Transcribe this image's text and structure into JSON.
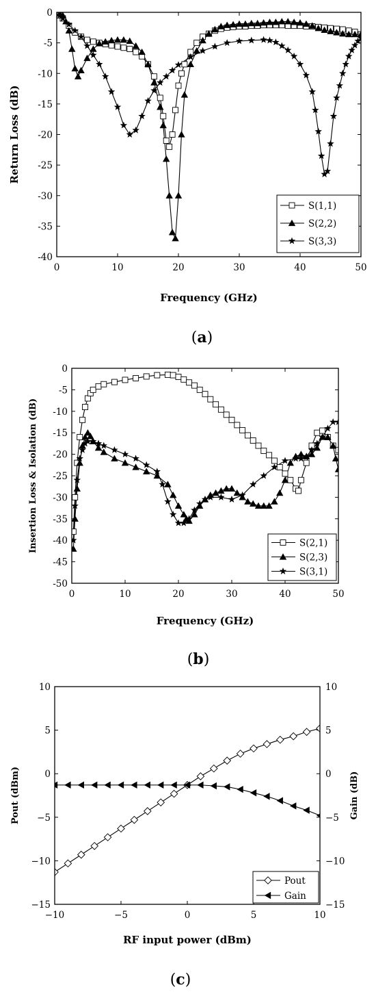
{
  "chart_data": [
    {
      "type": "line",
      "caption_open": "(",
      "caption_letter": "a",
      "caption_close": ")",
      "xlabel": "Frequency (GHz)",
      "ylabel": "Return Loss (dB)",
      "xlim": [
        0,
        50
      ],
      "ylim": [
        -40,
        0
      ],
      "xticks": [
        0,
        10,
        20,
        30,
        40,
        50
      ],
      "yticks": [
        0,
        -5,
        -10,
        -15,
        -20,
        -25,
        -30,
        -35,
        -40
      ],
      "grid": false,
      "legend_position": "bottom-right",
      "series": [
        {
          "name": "S(1,1)",
          "marker": "square-open",
          "x": [
            0.5,
            1,
            2,
            3,
            4,
            5,
            6,
            7,
            8,
            9,
            10,
            11,
            12,
            13,
            14,
            15,
            16,
            17,
            17.5,
            18,
            18.5,
            19,
            19.5,
            20,
            20.5,
            21,
            22,
            23,
            24,
            25,
            26,
            27,
            28,
            29,
            30,
            31,
            32,
            33,
            34,
            35,
            36,
            37,
            38,
            39,
            40,
            41,
            42,
            43,
            44,
            45,
            46,
            47,
            48,
            49,
            50
          ],
          "y": [
            -0.5,
            -1,
            -2.2,
            -3.3,
            -4,
            -4.5,
            -4.8,
            -5,
            -5.2,
            -5.4,
            -5.6,
            -5.8,
            -6,
            -6.5,
            -7.2,
            -8.5,
            -10.5,
            -14,
            -17,
            -21,
            -22,
            -20,
            -16,
            -12,
            -10,
            -8.5,
            -6.5,
            -5,
            -4,
            -3.5,
            -3,
            -2.7,
            -2.5,
            -2.4,
            -2.3,
            -2.3,
            -2.2,
            -2.2,
            -2.1,
            -2.1,
            -2.1,
            -2.1,
            -2.2,
            -2.2,
            -2.2,
            -2.3,
            -2.3,
            -2.4,
            -2.5,
            -2.6,
            -2.7,
            -2.8,
            -3,
            -3.2,
            -3.6
          ]
        },
        {
          "name": "S(2,2)",
          "marker": "triangle-filled",
          "x": [
            0.5,
            1,
            1.5,
            2,
            2.5,
            3,
            3.5,
            4,
            5,
            6,
            7,
            8,
            9,
            10,
            11,
            12,
            13,
            14,
            15,
            16,
            17,
            17.5,
            18,
            18.5,
            19,
            19.5,
            20,
            20.5,
            21,
            22,
            23,
            24,
            25,
            26,
            27,
            28,
            29,
            30,
            31,
            32,
            33,
            34,
            35,
            36,
            37,
            38,
            39,
            40,
            41,
            42,
            43,
            44,
            45,
            46,
            47,
            48,
            49,
            50
          ],
          "y": [
            -0.2,
            -0.5,
            -1.5,
            -3,
            -6,
            -9.2,
            -10.5,
            -9.5,
            -7.5,
            -6,
            -5.1,
            -4.8,
            -4.6,
            -4.5,
            -4.5,
            -4.7,
            -5.5,
            -6.5,
            -8.5,
            -11.5,
            -15.5,
            -18.5,
            -24,
            -30,
            -36,
            -37,
            -30,
            -20,
            -13.5,
            -8.5,
            -6.3,
            -4.6,
            -3.5,
            -2.8,
            -2.3,
            -2.1,
            -2,
            -1.9,
            -1.9,
            -1.8,
            -1.8,
            -1.7,
            -1.6,
            -1.6,
            -1.5,
            -1.5,
            -1.6,
            -1.7,
            -1.9,
            -2.2,
            -2.6,
            -2.9,
            -3.1,
            -3.3,
            -3.5,
            -3.6,
            -3.6,
            -3.6
          ]
        },
        {
          "name": "S(3,3)",
          "marker": "star-filled",
          "x": [
            0.5,
            1,
            2,
            3,
            4,
            5,
            6,
            7,
            8,
            9,
            10,
            11,
            12,
            13,
            14,
            15,
            16,
            17,
            18,
            19,
            20,
            22,
            24,
            26,
            28,
            30,
            32,
            34,
            35,
            36,
            37,
            38,
            39,
            40,
            41,
            42,
            42.5,
            43,
            43.5,
            44,
            44.5,
            45,
            45.5,
            46,
            46.5,
            47,
            47.5,
            48,
            48.5,
            49,
            49.5,
            50
          ],
          "y": [
            -0.5,
            -1,
            -2,
            -3,
            -4,
            -5.5,
            -7,
            -8.5,
            -10.5,
            -13,
            -15.5,
            -18.5,
            -20,
            -19.3,
            -17,
            -14.5,
            -12.8,
            -11.5,
            -10.5,
            -9.5,
            -8.6,
            -7.3,
            -6.3,
            -5.6,
            -5,
            -4.7,
            -4.6,
            -4.5,
            -4.6,
            -4.9,
            -5.5,
            -6.2,
            -7.2,
            -8.5,
            -10.3,
            -13,
            -16,
            -19.5,
            -23.5,
            -26.5,
            -26,
            -21.5,
            -17,
            -14,
            -12,
            -10,
            -8.5,
            -7.2,
            -6.2,
            -5.4,
            -4.7,
            -4.2
          ]
        }
      ]
    },
    {
      "type": "line",
      "caption_open": "(",
      "caption_letter": "b",
      "caption_close": ")",
      "xlabel": "Frequency (GHz)",
      "ylabel": "Insertion Loss & Isolation (dB)",
      "xlim": [
        0,
        50
      ],
      "ylim": [
        -50,
        0
      ],
      "xticks": [
        0,
        10,
        20,
        30,
        40,
        50
      ],
      "yticks": [
        0,
        -5,
        -10,
        -15,
        -20,
        -25,
        -30,
        -35,
        -40,
        -45,
        -50
      ],
      "grid": false,
      "legend_position": "bottom-right",
      "series": [
        {
          "name": "S(2,1)",
          "marker": "square-open",
          "x": [
            0.3,
            0.6,
            1,
            1.5,
            2,
            2.5,
            3,
            3.5,
            4,
            5,
            6,
            8,
            10,
            12,
            14,
            16,
            18,
            19,
            20,
            21,
            22,
            23,
            24,
            25,
            26,
            27,
            28,
            29,
            30,
            31,
            32,
            33,
            34,
            35,
            36,
            37,
            38,
            39,
            40,
            41,
            42,
            42.5,
            43,
            44,
            45,
            46,
            47,
            48,
            49,
            50
          ],
          "y": [
            -38,
            -30,
            -22,
            -16,
            -12,
            -9,
            -7,
            -5.8,
            -5,
            -4.2,
            -3.7,
            -3.2,
            -2.7,
            -2.3,
            -1.9,
            -1.6,
            -1.5,
            -1.6,
            -2,
            -2.6,
            -3.3,
            -4,
            -5,
            -6,
            -7.2,
            -8.4,
            -9.6,
            -10.8,
            -12,
            -13.2,
            -14.4,
            -15.6,
            -16.8,
            -18,
            -19.2,
            -20.2,
            -21.5,
            -23,
            -24.5,
            -26,
            -28,
            -28.5,
            -26,
            -22,
            -18,
            -15,
            -14.5,
            -16,
            -18,
            -19
          ]
        },
        {
          "name": "S(2,3)",
          "marker": "triangle-filled",
          "x": [
            0.3,
            0.6,
            1,
            1.5,
            2,
            2.5,
            3,
            3.5,
            4,
            5,
            6,
            8,
            10,
            12,
            14,
            16,
            18,
            19,
            20,
            21,
            21.5,
            22,
            23,
            24,
            25,
            26,
            27,
            28,
            29,
            30,
            31,
            32,
            33,
            34,
            35,
            36,
            37,
            38,
            39,
            40,
            41,
            42,
            43,
            44,
            45,
            46,
            47,
            48,
            49,
            49.5,
            50
          ],
          "y": [
            -42,
            -35,
            -28,
            -22,
            -18,
            -16,
            -15,
            -15.8,
            -17,
            -18.5,
            -19.5,
            -21,
            -22,
            -23,
            -24,
            -25,
            -27,
            -29.5,
            -32,
            -34,
            -35,
            -35.5,
            -34,
            -32,
            -30.5,
            -29.5,
            -29,
            -28.5,
            -28,
            -28,
            -29,
            -30,
            -31,
            -31.5,
            -32,
            -32,
            -32,
            -31,
            -29,
            -26,
            -22,
            -20.5,
            -20,
            -20.5,
            -20,
            -18.5,
            -16,
            -16,
            -18,
            -21,
            -23.5
          ]
        },
        {
          "name": "S(3,1)",
          "marker": "star-filled",
          "x": [
            0.3,
            0.6,
            1,
            1.5,
            2,
            2.5,
            3,
            4,
            5,
            6,
            8,
            10,
            12,
            14,
            16,
            17,
            18,
            19,
            20,
            21,
            22,
            23,
            24,
            25,
            26,
            28,
            30,
            32,
            34,
            36,
            38,
            40,
            42,
            43,
            44,
            45,
            46,
            47,
            48,
            49,
            50
          ],
          "y": [
            -40,
            -32,
            -26,
            -21,
            -19,
            -17.5,
            -17,
            -17,
            -17.5,
            -18,
            -19,
            -20,
            -21,
            -22.5,
            -24,
            -27,
            -31,
            -34,
            -36,
            -36,
            -35,
            -33,
            -31.5,
            -30.5,
            -30,
            -30,
            -30.5,
            -29.5,
            -27,
            -25,
            -23,
            -21.5,
            -21,
            -21,
            -20.5,
            -19,
            -17.5,
            -16,
            -14,
            -12.5,
            -12.5
          ]
        }
      ]
    },
    {
      "type": "line",
      "caption_open": "(",
      "caption_letter": "c",
      "caption_close": ")",
      "xlabel": "RF input power (dBm)",
      "ylabel": "Pout (dBm)",
      "ylabel_right": "Gain (dB)",
      "xlim": [
        -10,
        10
      ],
      "ylim": [
        -15,
        10
      ],
      "ylim_right": [
        -15,
        10
      ],
      "xticks": [
        -10,
        -5,
        0,
        5,
        10
      ],
      "yticks": [
        10,
        5,
        0,
        -5,
        -10,
        -15
      ],
      "grid": false,
      "legend_position": "bottom-right",
      "series": [
        {
          "name": "Pout",
          "marker": "diamond-open",
          "axis": "left",
          "x": [
            -10,
            -9,
            -8,
            -7,
            -6,
            -5,
            -4,
            -3,
            -2,
            -1,
            0,
            1,
            2,
            3,
            4,
            5,
            6,
            7,
            8,
            9,
            10
          ],
          "y": [
            -11.3,
            -10.3,
            -9.3,
            -8.3,
            -7.3,
            -6.3,
            -5.3,
            -4.3,
            -3.3,
            -2.3,
            -1.3,
            -0.3,
            0.6,
            1.5,
            2.3,
            2.9,
            3.4,
            3.9,
            4.3,
            4.8,
            5.2
          ]
        },
        {
          "name": "Gain",
          "marker": "triangle-left-filled",
          "axis": "right",
          "x": [
            -10,
            -9,
            -8,
            -7,
            -6,
            -5,
            -4,
            -3,
            -2,
            -1,
            0,
            1,
            2,
            3,
            4,
            5,
            6,
            7,
            8,
            9,
            10
          ],
          "y": [
            -1.3,
            -1.3,
            -1.3,
            -1.3,
            -1.3,
            -1.3,
            -1.3,
            -1.3,
            -1.3,
            -1.3,
            -1.3,
            -1.3,
            -1.4,
            -1.5,
            -1.8,
            -2.2,
            -2.6,
            -3.1,
            -3.7,
            -4.2,
            -4.8
          ]
        }
      ]
    }
  ]
}
